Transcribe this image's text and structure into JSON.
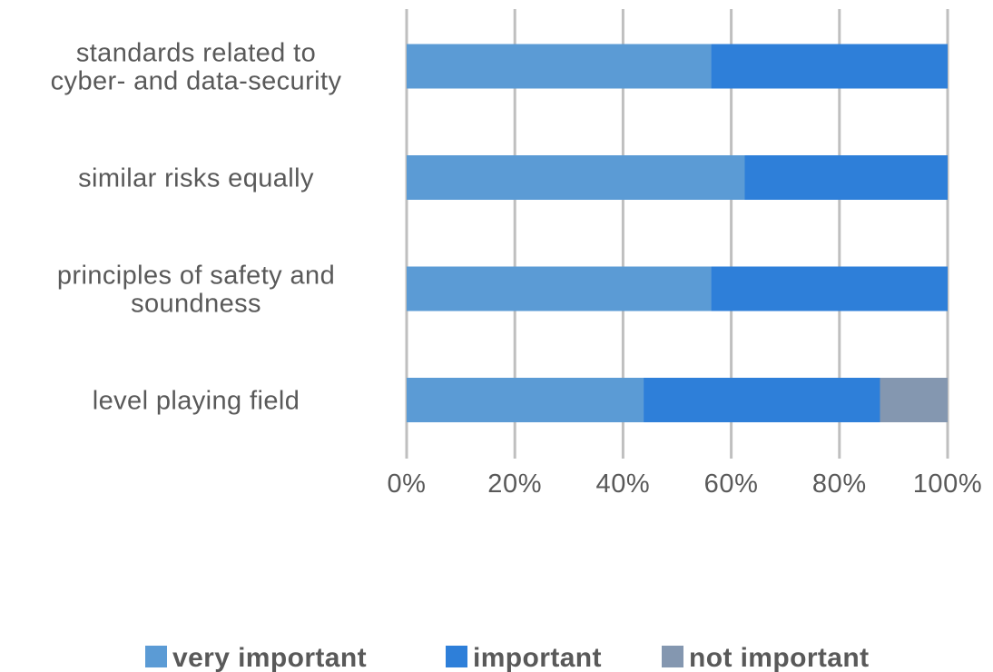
{
  "chart_data": {
    "type": "bar",
    "orientation": "horizontal",
    "stacked": "percent",
    "categories": [
      [
        "standards related to",
        "cyber- and data-security"
      ],
      [
        "similar risks equally"
      ],
      [
        "principles of safety and",
        "soundness"
      ],
      [
        "level playing field"
      ]
    ],
    "series": [
      {
        "name": "very important",
        "color": "#5b9bd5",
        "values": [
          56.3,
          62.5,
          56.3,
          43.8
        ]
      },
      {
        "name": "important",
        "color": "#2e7fd9",
        "values": [
          43.7,
          37.5,
          43.7,
          43.7
        ]
      },
      {
        "name": "not important",
        "color": "#8497b0",
        "values": [
          0,
          0,
          0,
          12.5
        ]
      }
    ],
    "xlim": [
      0,
      100
    ],
    "xticks": [
      0,
      20,
      40,
      60,
      80,
      100
    ],
    "xtick_labels": [
      "0%",
      "20%",
      "40%",
      "60%",
      "80%",
      "100%"
    ],
    "grid": "vertical",
    "legend_position": "bottom",
    "title": "",
    "xlabel": "",
    "ylabel": ""
  }
}
